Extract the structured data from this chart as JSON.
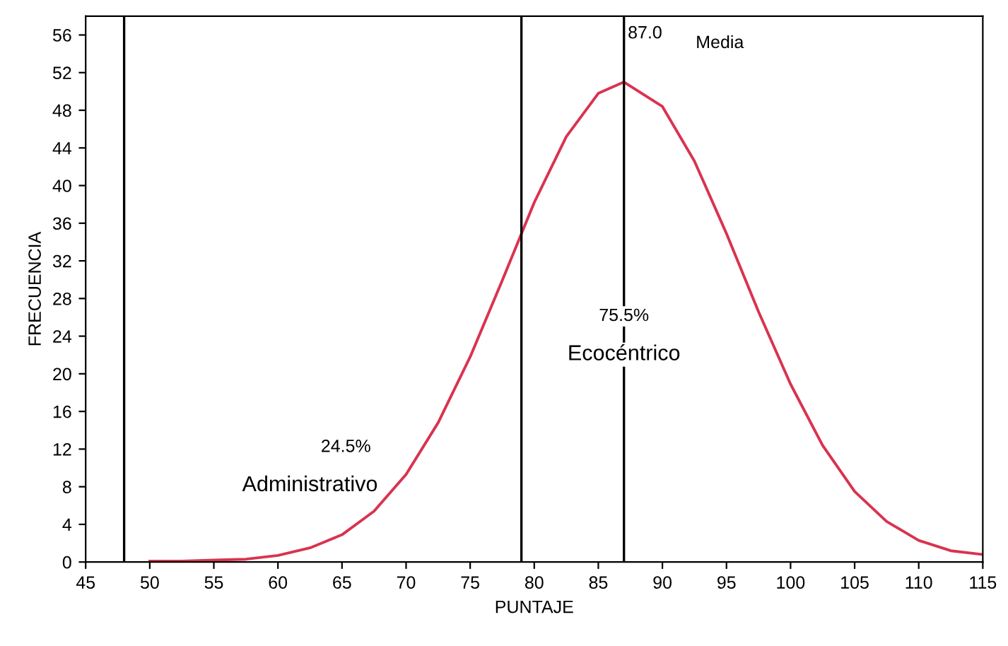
{
  "chart_data": {
    "type": "line",
    "xlabel": "PUNTAJE",
    "ylabel": "FRECUENCIA",
    "xlim": [
      45,
      115
    ],
    "ylim": [
      0,
      58
    ],
    "xticks": [
      45,
      50,
      55,
      60,
      65,
      70,
      75,
      80,
      85,
      90,
      95,
      100,
      105,
      110,
      115
    ],
    "yticks": [
      0,
      4,
      8,
      12,
      16,
      20,
      24,
      28,
      32,
      36,
      40,
      44,
      48,
      52,
      56
    ],
    "grid": false,
    "marker": "none",
    "line_style": "solid",
    "series": [
      {
        "color": "#d9334f",
        "x": [
          50,
          52.5,
          55,
          57.5,
          60,
          62.5,
          65,
          67.5,
          70,
          72.5,
          75,
          77.5,
          80,
          82.5,
          85,
          87,
          90,
          92.5,
          95,
          97.5,
          100,
          102.5,
          105,
          107.5,
          110,
          112.5,
          115
        ],
        "values": [
          0.1,
          0.1,
          0.2,
          0.3,
          0.7,
          1.5,
          2.9,
          5.4,
          9.3,
          14.8,
          21.8,
          29.9,
          38.2,
          45.2,
          49.8,
          51,
          48.4,
          42.6,
          34.9,
          26.6,
          18.9,
          12.4,
          7.5,
          4.3,
          2.3,
          1.2,
          0.8
        ]
      }
    ],
    "ref_lines": [
      {
        "axis": "x",
        "value": 48,
        "color": "#000000"
      },
      {
        "axis": "x",
        "value": 79,
        "color": "#000000"
      },
      {
        "axis": "x",
        "value": 87,
        "label": "87.0",
        "color": "#000000"
      }
    ],
    "annotations": [
      "Media",
      "75.5%",
      "Ecocéntrico",
      "24.5%",
      "Administrativo"
    ]
  }
}
